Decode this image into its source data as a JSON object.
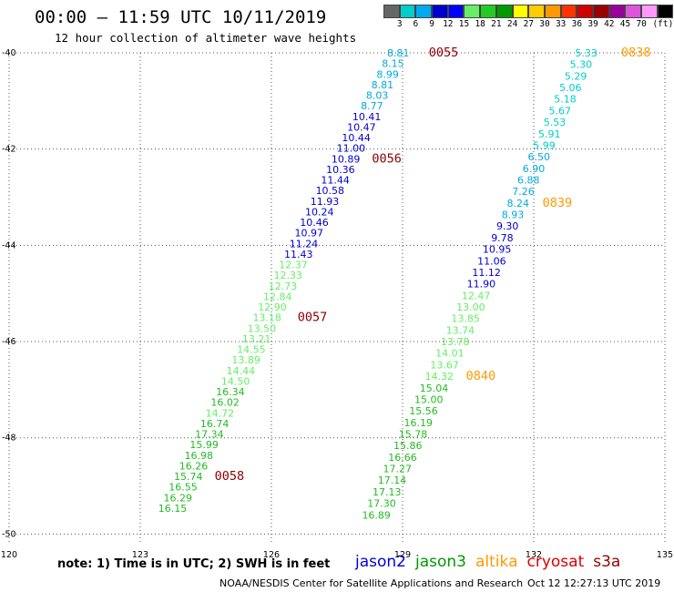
{
  "title": "00:00 – 11:59 UTC 10/11/2019",
  "subtitle": "12 hour collection of altimeter wave heights",
  "legend": {
    "colors": [
      "#666666",
      "#00cccc",
      "#00aaee",
      "#0000cc",
      "#0000ff",
      "#66ee66",
      "#22cc22",
      "#009900",
      "#ffff00",
      "#ffcc00",
      "#ff9900",
      "#ff3300",
      "#cc0000",
      "#990000",
      "#990099",
      "#dd55dd",
      "#ff99ff",
      "#000000"
    ],
    "labels": [
      "3",
      "6",
      "9",
      "12",
      "15",
      "18",
      "21",
      "24",
      "27",
      "30",
      "33",
      "36",
      "39",
      "42",
      "45",
      "70",
      "(ft)"
    ]
  },
  "map": {
    "lat_ticks": [
      "-40",
      "-42",
      "-44",
      "-46",
      "-48",
      "-50"
    ],
    "lon_ticks": [
      "120",
      "123",
      "126",
      "129",
      "132",
      "135"
    ],
    "lat_range": [
      -50.2,
      -40
    ],
    "lon_range": [
      120,
      135
    ]
  },
  "tracks": [
    {
      "satellite": "jason3",
      "points": [
        {
          "lat": -40.0,
          "lon": 128.9,
          "v": "8.81"
        },
        {
          "lat": -40.22,
          "lon": 128.78,
          "v": "8.15"
        },
        {
          "lat": -40.44,
          "lon": 128.66,
          "v": "8.99"
        },
        {
          "lat": -40.66,
          "lon": 128.54,
          "v": "8.81"
        },
        {
          "lat": -40.88,
          "lon": 128.42,
          "v": "8.03"
        },
        {
          "lat": -41.1,
          "lon": 128.3,
          "v": "8.77"
        },
        {
          "lat": -41.32,
          "lon": 128.18,
          "v": "10.41"
        },
        {
          "lat": -41.54,
          "lon": 128.06,
          "v": "10.47"
        },
        {
          "lat": -41.76,
          "lon": 127.94,
          "v": "10.44"
        },
        {
          "lat": -41.98,
          "lon": 127.82,
          "v": "11.00"
        },
        {
          "lat": -42.2,
          "lon": 127.7,
          "v": "10.89"
        },
        {
          "lat": -42.42,
          "lon": 127.58,
          "v": "10.36"
        },
        {
          "lat": -42.64,
          "lon": 127.46,
          "v": "11.44"
        },
        {
          "lat": -42.86,
          "lon": 127.34,
          "v": "10.58"
        },
        {
          "lat": -43.08,
          "lon": 127.22,
          "v": "11.93"
        },
        {
          "lat": -43.3,
          "lon": 127.1,
          "v": "10.24"
        },
        {
          "lat": -43.52,
          "lon": 126.98,
          "v": "10.46"
        },
        {
          "lat": -43.74,
          "lon": 126.86,
          "v": "10.97"
        },
        {
          "lat": -43.96,
          "lon": 126.74,
          "v": "11.24"
        },
        {
          "lat": -44.18,
          "lon": 126.62,
          "v": "11.43"
        },
        {
          "lat": -44.4,
          "lon": 126.5,
          "v": "12.37"
        },
        {
          "lat": -44.62,
          "lon": 126.38,
          "v": "12.33"
        },
        {
          "lat": -44.84,
          "lon": 126.26,
          "v": "12.73"
        },
        {
          "lat": -45.06,
          "lon": 126.14,
          "v": "12.84"
        },
        {
          "lat": -45.28,
          "lon": 126.02,
          "v": "12.90"
        },
        {
          "lat": -45.5,
          "lon": 125.9,
          "v": "13.18"
        },
        {
          "lat": -45.72,
          "lon": 125.78,
          "v": "13.50"
        },
        {
          "lat": -45.94,
          "lon": 125.66,
          "v": "13.21"
        },
        {
          "lat": -46.16,
          "lon": 125.54,
          "v": "14.55"
        },
        {
          "lat": -46.38,
          "lon": 125.42,
          "v": "13.89"
        },
        {
          "lat": -46.6,
          "lon": 125.3,
          "v": "14.44"
        },
        {
          "lat": -46.82,
          "lon": 125.18,
          "v": "14.50"
        },
        {
          "lat": -47.04,
          "lon": 125.06,
          "v": "16.34"
        },
        {
          "lat": -47.26,
          "lon": 124.94,
          "v": "16.02"
        },
        {
          "lat": -47.48,
          "lon": 124.82,
          "v": "14.72"
        },
        {
          "lat": -47.7,
          "lon": 124.7,
          "v": "16.74"
        },
        {
          "lat": -47.92,
          "lon": 124.58,
          "v": "17.34"
        },
        {
          "lat": -48.14,
          "lon": 124.46,
          "v": "15.99"
        },
        {
          "lat": -48.36,
          "lon": 124.34,
          "v": "16.98"
        },
        {
          "lat": -48.58,
          "lon": 124.22,
          "v": "16.26"
        },
        {
          "lat": -48.8,
          "lon": 124.1,
          "v": "15.74"
        },
        {
          "lat": -49.02,
          "lon": 123.98,
          "v": "16.55"
        },
        {
          "lat": -49.24,
          "lon": 123.86,
          "v": "16.29"
        },
        {
          "lat": -49.46,
          "lon": 123.74,
          "v": "16.15"
        }
      ],
      "time_labels": [
        {
          "lat": -40.0,
          "lon": 129.6,
          "text": "0055"
        },
        {
          "lat": -42.2,
          "lon": 128.3,
          "text": "0056"
        },
        {
          "lat": -45.5,
          "lon": 126.6,
          "text": "0057"
        },
        {
          "lat": -48.8,
          "lon": 124.7,
          "text": "0058"
        }
      ]
    },
    {
      "satellite": "altika",
      "points": [
        {
          "lat": -40.0,
          "lon": 133.2,
          "v": "5.33"
        },
        {
          "lat": -40.24,
          "lon": 133.08,
          "v": "5.30"
        },
        {
          "lat": -40.48,
          "lon": 132.96,
          "v": "5.29"
        },
        {
          "lat": -40.72,
          "lon": 132.84,
          "v": "5.06"
        },
        {
          "lat": -40.96,
          "lon": 132.72,
          "v": "5.18"
        },
        {
          "lat": -41.2,
          "lon": 132.6,
          "v": "5.67"
        },
        {
          "lat": -41.44,
          "lon": 132.48,
          "v": "5.53"
        },
        {
          "lat": -41.68,
          "lon": 132.36,
          "v": "5.91"
        },
        {
          "lat": -41.92,
          "lon": 132.24,
          "v": "5.99"
        },
        {
          "lat": -42.16,
          "lon": 132.12,
          "v": "6.50"
        },
        {
          "lat": -42.4,
          "lon": 132.0,
          "v": "6.90"
        },
        {
          "lat": -42.64,
          "lon": 131.88,
          "v": "6.88"
        },
        {
          "lat": -42.88,
          "lon": 131.76,
          "v": "7.26"
        },
        {
          "lat": -43.12,
          "lon": 131.64,
          "v": "8.24"
        },
        {
          "lat": -43.36,
          "lon": 131.52,
          "v": "8.93"
        },
        {
          "lat": -43.6,
          "lon": 131.4,
          "v": "9.30"
        },
        {
          "lat": -43.84,
          "lon": 131.28,
          "v": "9.78"
        },
        {
          "lat": -44.08,
          "lon": 131.16,
          "v": "10.95"
        },
        {
          "lat": -44.32,
          "lon": 131.04,
          "v": "11.06"
        },
        {
          "lat": -44.56,
          "lon": 130.92,
          "v": "11.12"
        },
        {
          "lat": -44.8,
          "lon": 130.8,
          "v": "11.90"
        },
        {
          "lat": -45.04,
          "lon": 130.68,
          "v": "12.47"
        },
        {
          "lat": -45.28,
          "lon": 130.56,
          "v": "13.00"
        },
        {
          "lat": -45.52,
          "lon": 130.44,
          "v": "13.85"
        },
        {
          "lat": -45.76,
          "lon": 130.32,
          "v": "13.74"
        },
        {
          "lat": -46.0,
          "lon": 130.2,
          "v": "13.78"
        },
        {
          "lat": -46.24,
          "lon": 130.08,
          "v": "14.01"
        },
        {
          "lat": -46.48,
          "lon": 129.96,
          "v": "13.67"
        },
        {
          "lat": -46.72,
          "lon": 129.84,
          "v": "14.32"
        },
        {
          "lat": -46.96,
          "lon": 129.72,
          "v": "15.04"
        },
        {
          "lat": -47.2,
          "lon": 129.6,
          "v": "15.00"
        },
        {
          "lat": -47.44,
          "lon": 129.48,
          "v": "15.56"
        },
        {
          "lat": -47.68,
          "lon": 129.36,
          "v": "16.19"
        },
        {
          "lat": -47.92,
          "lon": 129.24,
          "v": "15.78"
        },
        {
          "lat": -48.16,
          "lon": 129.12,
          "v": "15.86"
        },
        {
          "lat": -48.4,
          "lon": 129.0,
          "v": "16.66"
        },
        {
          "lat": -48.64,
          "lon": 128.88,
          "v": "17.27"
        },
        {
          "lat": -48.88,
          "lon": 128.76,
          "v": "17.14"
        },
        {
          "lat": -49.12,
          "lon": 128.64,
          "v": "17.13"
        },
        {
          "lat": -49.36,
          "lon": 128.52,
          "v": "17.30"
        },
        {
          "lat": -49.6,
          "lon": 128.4,
          "v": "16.89"
        }
      ],
      "time_labels": [
        {
          "lat": -40.0,
          "lon": 134.0,
          "text": "0838"
        },
        {
          "lat": -43.12,
          "lon": 132.2,
          "text": "0839"
        },
        {
          "lat": -46.72,
          "lon": 130.45,
          "text": "0840"
        }
      ]
    }
  ],
  "satellites": [
    {
      "name": "jason2",
      "color": "#0000dd"
    },
    {
      "name": "jason3",
      "color": "#009900"
    },
    {
      "name": "altika",
      "color": "#ff9900"
    },
    {
      "name": "cryosat",
      "color": "#dd0000"
    },
    {
      "name": "s3a",
      "color": "#990000"
    }
  ],
  "time_label_colors": {
    "jason3": "#8b0000",
    "altika": "#ff9900"
  },
  "note": "note: 1) Time is in UTC; 2) SWH is in feet",
  "footer": {
    "credit": "NOAA/NESDIS Center for Satellite Applications and Research",
    "timestamp": "Oct 12 12:27:13 UTC 2019"
  }
}
